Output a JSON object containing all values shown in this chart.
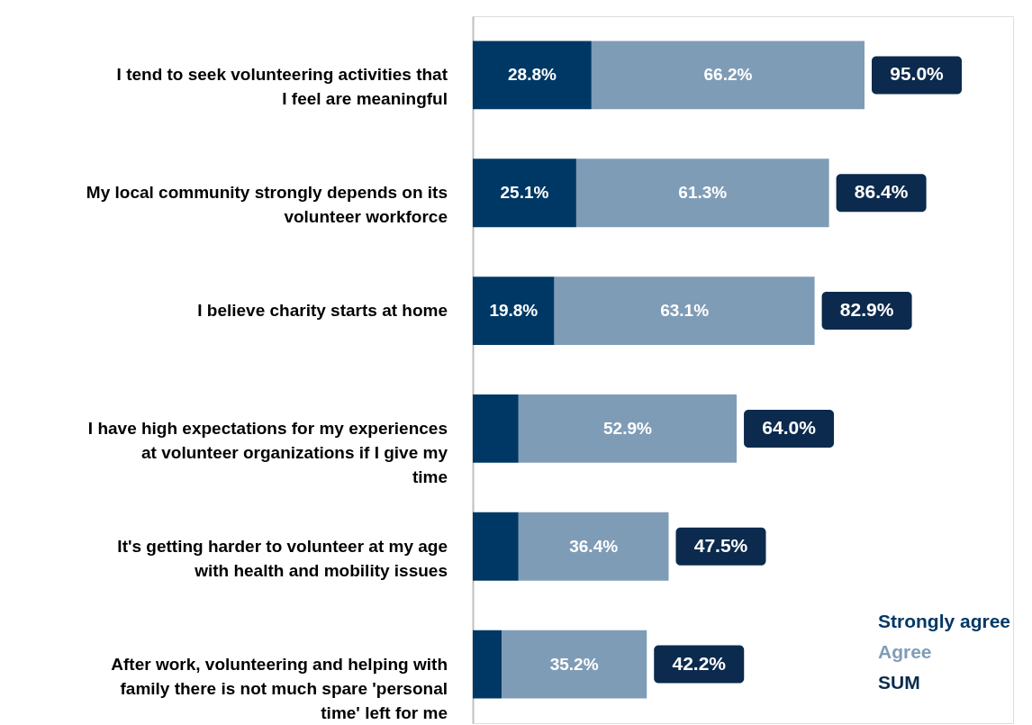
{
  "chart_data": {
    "type": "bar",
    "orientation": "horizontal",
    "stacked": true,
    "legend": "bottom right",
    "categories": [
      "I tend to seek volunteering activities that I feel are meaningful",
      "My local community strongly depends on its volunteer workforce",
      "I believe charity starts at home",
      "I have high expectations for my experiences at volunteer organizations if I give my time",
      "It's getting harder to volunteer at my age with health and mobility issues",
      "After work, volunteering and helping with family there is not much spare 'personal time' left for me"
    ],
    "series": [
      {
        "name": "Strongly agree",
        "color": "#003865",
        "values": [
          28.8,
          25.1,
          19.8,
          11.1,
          11.1,
          7.0
        ],
        "value_labels": [
          "28.8%",
          "25.1%",
          "19.8%",
          null,
          null,
          null
        ]
      },
      {
        "name": "Agree",
        "color": "#7f9cb7",
        "values": [
          66.2,
          61.3,
          63.1,
          52.9,
          36.4,
          35.2
        ],
        "value_labels": [
          "66.2%",
          "61.3%",
          "63.1%",
          "52.9%",
          "36.4%",
          "35.2%"
        ]
      }
    ],
    "totals": [
      "95.0%",
      "86.4%",
      "82.9%",
      "64.0%",
      "47.5%",
      "42.2%"
    ],
    "annotations": [
      "SUM"
    ]
  }
}
